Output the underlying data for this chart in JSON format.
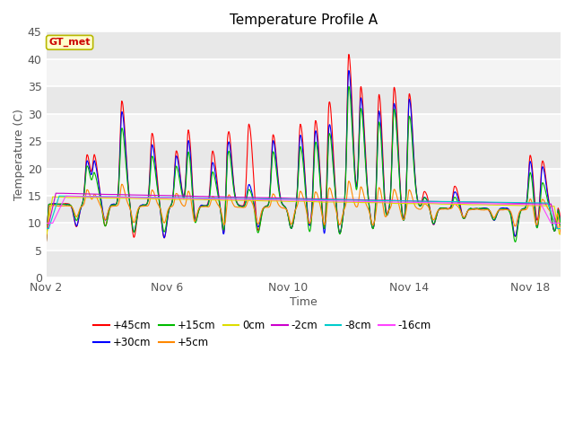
{
  "title": "Temperature Profile A",
  "xlabel": "Time",
  "ylabel": "Temperature (C)",
  "ylim": [
    0,
    45
  ],
  "yticks": [
    0,
    5,
    10,
    15,
    20,
    25,
    30,
    35,
    40,
    45
  ],
  "bg_color": "#e8e8e8",
  "legend_label": "GT_met",
  "legend_bg": "#ffffcc",
  "legend_edge": "#b8b800",
  "legend_text_color": "#cc0000",
  "series_order": [
    "+45cm",
    "+30cm",
    "+15cm",
    "+5cm",
    "0cm",
    "-2cm",
    "-8cm",
    "-16cm"
  ],
  "series": {
    "+45cm": {
      "color": "#ff0000",
      "lw": 0.8
    },
    "+30cm": {
      "color": "#0000ff",
      "lw": 0.8
    },
    "+15cm": {
      "color": "#00bb00",
      "lw": 0.8
    },
    "+5cm": {
      "color": "#ff8800",
      "lw": 0.8
    },
    "0cm": {
      "color": "#dddd00",
      "lw": 0.8
    },
    "-2cm": {
      "color": "#cc00cc",
      "lw": 0.8
    },
    "-8cm": {
      "color": "#00cccc",
      "lw": 0.8
    },
    "-16cm": {
      "color": "#ff44ff",
      "lw": 0.8
    }
  },
  "x_tick_labels": [
    "Nov 2",
    "Nov 6",
    "Nov 10",
    "Nov 14",
    "Nov 18"
  ],
  "x_tick_positions": [
    0,
    4,
    8,
    12,
    16
  ]
}
